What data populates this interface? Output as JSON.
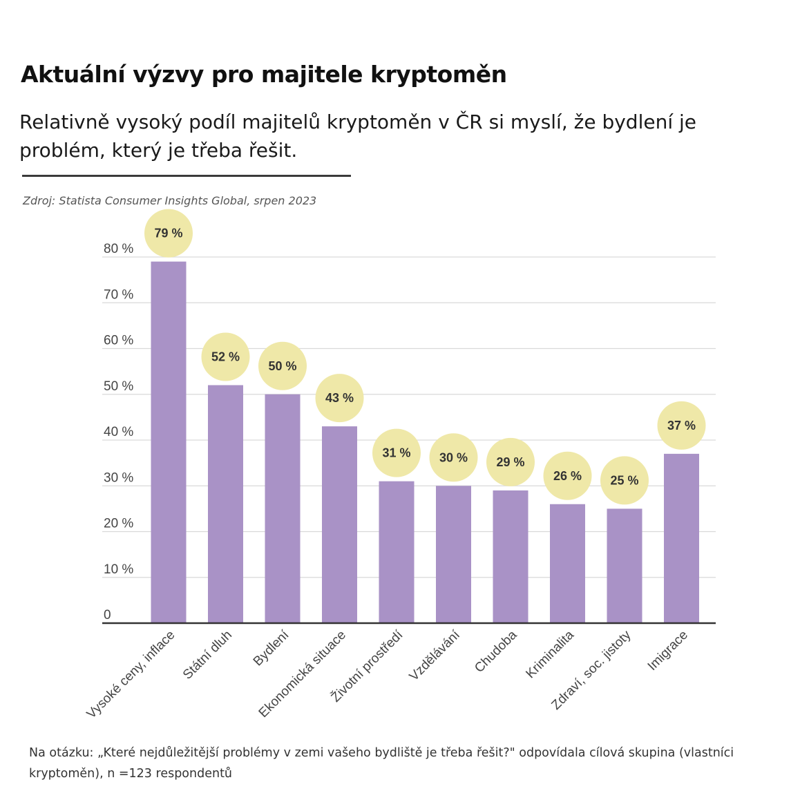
{
  "header": {
    "title": "Aktuální výzvy pro majitele kryptoměn",
    "subtitle": "Relativně vysoký podíl majitelů kryptoměn v ČR si myslí, že bydlení je problém, který je třeba řešit.",
    "source": "Zdroj: Statista Consumer Insights Global, srpen 2023"
  },
  "footnote": "Na otázku: „Které nejdůležitější problémy v zemi vašeho bydliště je třeba řešit?\" odpovídala cílová skupina (vlastníci kryptoměn), n =123 respondentů",
  "chart_data": {
    "type": "bar",
    "title": "Aktuální výzvy pro majitele kryptoměn",
    "xlabel": "",
    "ylabel": "",
    "categories": [
      "Vysoké ceny, inflace",
      "Státní dluh",
      "Bydlení",
      "Ekonomická situace",
      "Životní prostředí",
      "Vzdělávání",
      "Chudoba",
      "Kriminalita",
      "Zdraví, soc. jistoty",
      "Imigrace"
    ],
    "values": [
      79,
      52,
      50,
      43,
      31,
      30,
      29,
      26,
      25,
      37
    ],
    "value_labels": [
      "79 %",
      "52 %",
      "50 %",
      "43 %",
      "31 %",
      "30 %",
      "29 %",
      "26 %",
      "25 %",
      "37 %"
    ],
    "ylim": [
      0,
      80
    ],
    "yticks": [
      0,
      10,
      20,
      30,
      40,
      50,
      60,
      70,
      80
    ],
    "ytick_labels": [
      "0",
      "10 %",
      "20 %",
      "30 %",
      "40 %",
      "50 %",
      "60 %",
      "70 %",
      "80 %"
    ],
    "grid": true,
    "legend": "none",
    "colors": {
      "bar": "#a992c6",
      "label_bubble": "#efe8a8",
      "label_text": "#333333",
      "grid": "#d9d9d9",
      "axis": "#333333",
      "tick_text": "#444444"
    }
  }
}
